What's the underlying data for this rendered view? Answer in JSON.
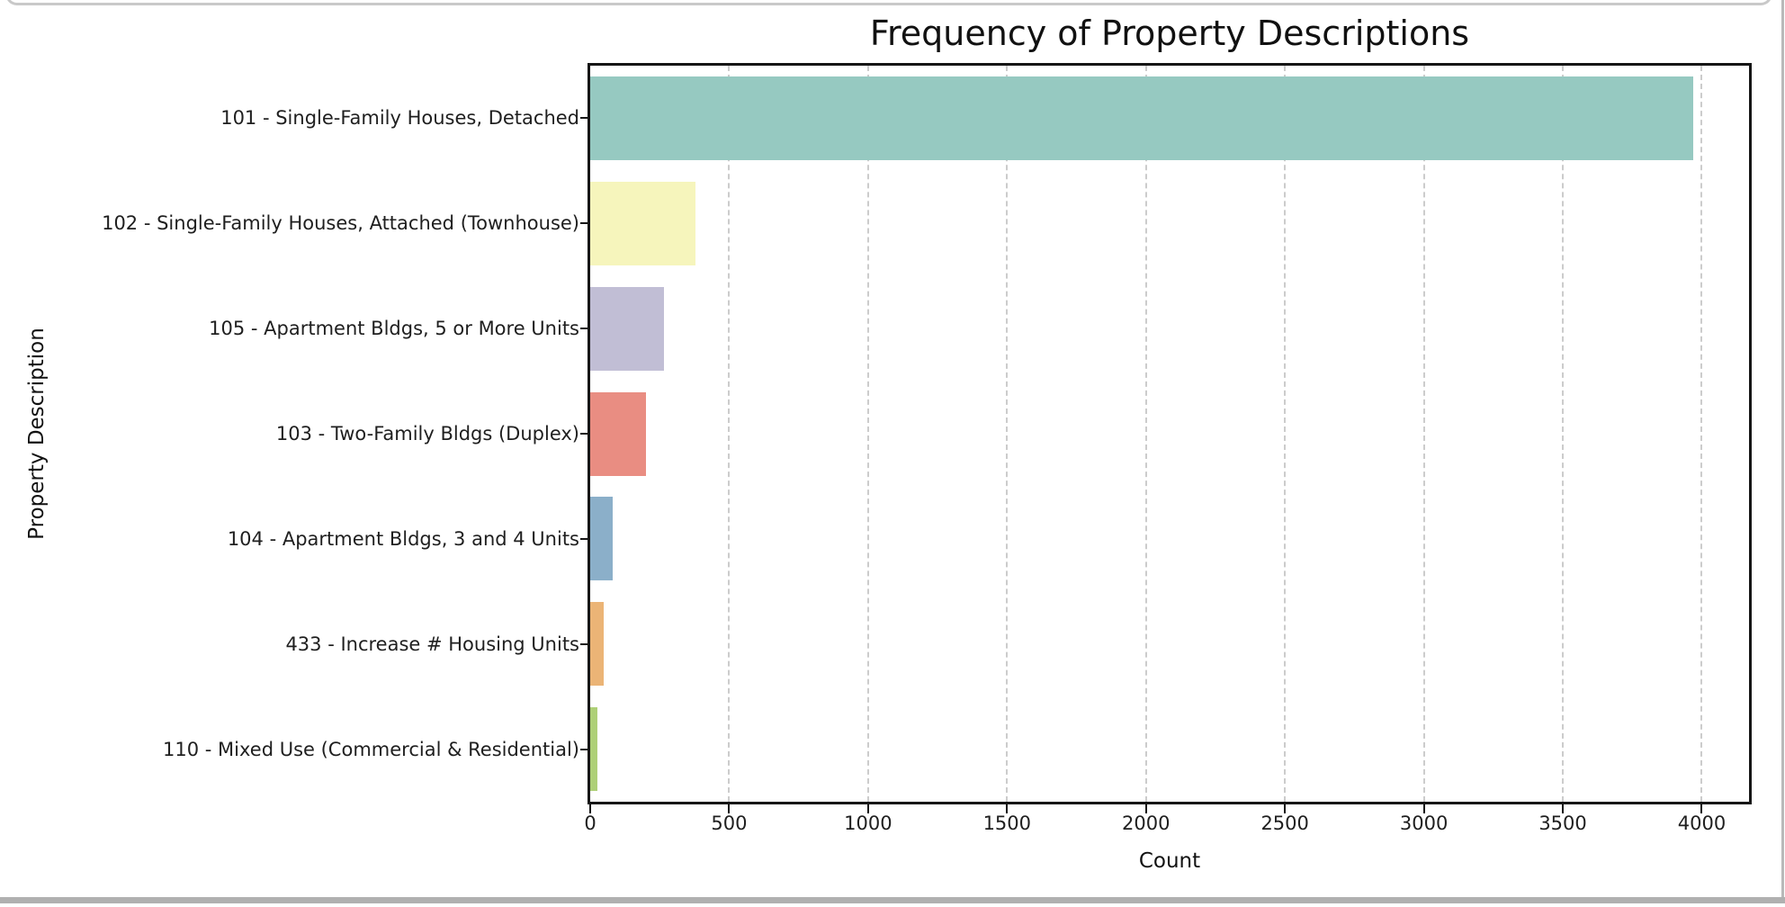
{
  "frame": {
    "card_above_edge_color": "#c9c9c9",
    "right_edge_color": "#b9b9b9",
    "bottom_divider_color": "#b0b0b0",
    "plot_border_color": "#161616",
    "gridline_color": "#cccccc",
    "background_color": "#ffffff",
    "text_color": "#1f1f1f"
  },
  "chart_data": {
    "type": "bar",
    "orientation": "horizontal",
    "title": "Frequency of Property Descriptions",
    "xlabel": "Count",
    "ylabel": "Property Description",
    "categories": [
      "101 - Single-Family Houses, Detached",
      "102 - Single-Family Houses, Attached (Townhouse)",
      "105 - Apartment Bldgs, 5 or More Units",
      "103 - Two-Family Bldgs (Duplex)",
      "104 - Apartment Bldgs, 3 and 4 Units",
      "433 - Increase # Housing Units",
      "110 - Mixed Use (Commercial & Residential)"
    ],
    "values": [
      3970,
      380,
      265,
      200,
      80,
      50,
      25
    ],
    "bar_colors": [
      "#96c9c1",
      "#f6f5bc",
      "#c1bed5",
      "#e98d82",
      "#8bafc9",
      "#ebb476",
      "#aed077"
    ],
    "xlim": [
      0,
      4170
    ],
    "xticks": [
      0,
      500,
      1000,
      1500,
      2000,
      2500,
      3000,
      3500,
      4000
    ],
    "grid": "vertical-dashed",
    "legend": "none"
  }
}
